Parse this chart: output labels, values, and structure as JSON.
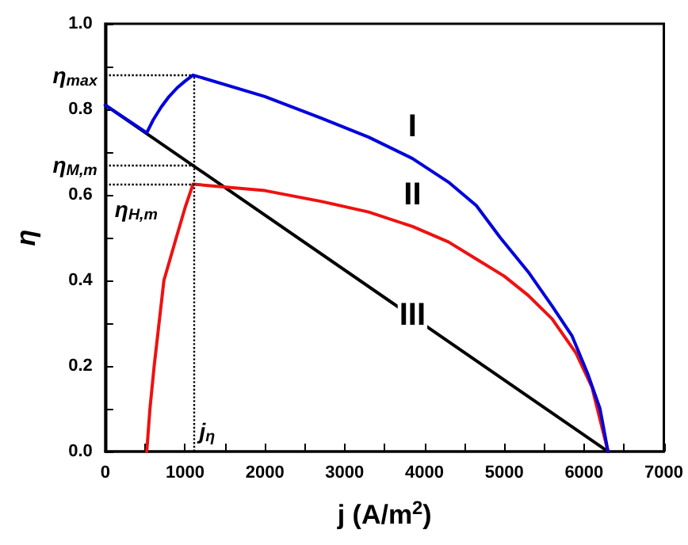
{
  "chart_data": {
    "type": "line",
    "xlabel": "j (A/m$^{2}$)",
    "ylabel": "η",
    "xlim": [
      0,
      7000
    ],
    "xticks": [
      0,
      1000,
      2000,
      3000,
      4000,
      5000,
      6000,
      7000
    ],
    "ylim": [
      0,
      1.0
    ],
    "yticks": [
      {
        "value": 0,
        "label": "0.0"
      },
      0.2,
      0.4,
      0.6,
      0.8,
      {
        "value": 1.0,
        "label": "1.0"
      }
    ],
    "grid": false,
    "legend": false,
    "marker": "none",
    "line_style": "solid",
    "series": [
      {
        "name": "I",
        "color": "#0000dd",
        "x": [
          0,
          520,
          600,
          700,
          800,
          900,
          1000,
          1100,
          2000,
          2700,
          3300,
          3850,
          4300,
          4650,
          4950,
          5300,
          5600,
          5850,
          6050,
          6200,
          6300
        ],
        "values": [
          0.81,
          0.745,
          0.775,
          0.805,
          0.83,
          0.85,
          0.866,
          0.88,
          0.83,
          0.78,
          0.735,
          0.685,
          0.63,
          0.575,
          0.5,
          0.42,
          0.34,
          0.27,
          0.18,
          0.1,
          0
        ]
      },
      {
        "name": "II",
        "color": "#ee1111",
        "x": [
          520,
          560,
          613,
          735,
          890,
          1000,
          1100,
          2000,
          2700,
          3300,
          3850,
          4300,
          4650,
          5000,
          5300,
          5600,
          5900,
          6100,
          6300
        ],
        "values": [
          0,
          0.1,
          0.2,
          0.4,
          0.5,
          0.57,
          0.625,
          0.61,
          0.585,
          0.56,
          0.526,
          0.49,
          0.45,
          0.41,
          0.365,
          0.31,
          0.23,
          0.15,
          0
        ]
      },
      {
        "name": "III",
        "color": "#000000",
        "x": [
          0,
          3850,
          6300
        ],
        "values": [
          0.81,
          0.315,
          0
        ]
      }
    ],
    "ref_lines": [
      {
        "axis": "y",
        "value": 0.88,
        "label": "η$_{max}$",
        "line_style": "dotted",
        "color": "#000000"
      },
      {
        "axis": "y",
        "value": 0.67,
        "label": "η$_{M,m}$",
        "line_style": "dotted",
        "color": "#000000"
      },
      {
        "axis": "y",
        "value": 0.625,
        "label": "η$_{H,m}$",
        "line_style": "dotted",
        "color": "#000000"
      },
      {
        "axis": "x",
        "value": 1100,
        "label": "j$_{η}$",
        "line_style": "dotted",
        "color": "#000000"
      }
    ]
  }
}
